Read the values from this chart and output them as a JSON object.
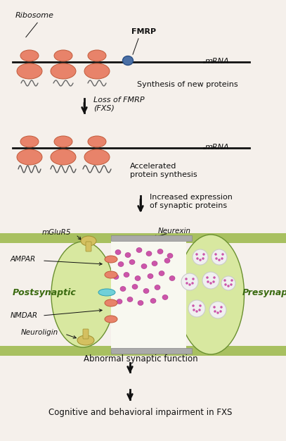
{
  "bg_color": "#f5f0eb",
  "ribosome_color": "#e8836a",
  "ribosome_outline": "#c05a3a",
  "mrna_color": "#111111",
  "fmrp_color": "#4a6fa5",
  "fmrp_outline": "#2a4f85",
  "arrow_color": "#111111",
  "synapse_green_light": "#c8d98a",
  "synapse_green_med": "#a8c060",
  "synapse_green_dark": "#6a9030",
  "synapse_fill_light": "#d8e8a0",
  "cleft_color": "#f8f8f0",
  "dot_color": "#cc55aa",
  "dot_outline": "#aa3388",
  "vesicle_color": "#f0f0f0",
  "vesicle_outline": "#cccccc",
  "receptor_orange": "#e8836a",
  "receptor_outline": "#c05a3a",
  "cyan_color": "#70d0d8",
  "cyan_outline": "#30a0b0",
  "yellow_color": "#d4c060",
  "yellow_outline": "#a09030",
  "scaffold_color": "#aaaaaa",
  "scaffold_outline": "#888888",
  "text_color": "#111111",
  "green_text": "#3a6a10",
  "labels": {
    "ribosome": "Ribosome",
    "fmrp": "FMRP",
    "mrna": "mRNA",
    "synthesis": "Synthesis of new proteins",
    "loss_fmrp": "Loss of FMRP\n(FXS)",
    "mrna2": "mRNA",
    "accelerated": "Accelerated\nprotein synthesis",
    "increased": "Increased expression\nof synaptic proteins",
    "mglu": "mGluR5",
    "ampar": "AMPAR",
    "postsynaptic": "Postsynaptic",
    "nmdar": "NMDAR",
    "neuroligin": "Neuroligin",
    "neurexin": "Neurexin",
    "presynaptic": "Presynaptic",
    "abnormal": "Abnormal synaptic function",
    "cognitive": "Cognitive and behavioral impairment in FXS"
  }
}
